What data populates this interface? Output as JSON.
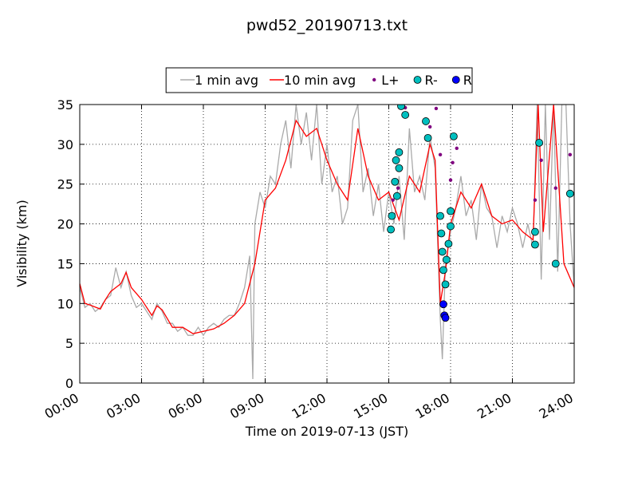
{
  "chart_data": {
    "type": "line",
    "title": "pwd52_20190713.txt",
    "x_label": "Time on 2019-07-13 (JST)",
    "y_label": "Visibility (km)",
    "xlim": [
      0,
      24
    ],
    "ylim": [
      0,
      35
    ],
    "xticks": [
      {
        "value": 0,
        "label": "00:00"
      },
      {
        "value": 3,
        "label": "03:00"
      },
      {
        "value": 6,
        "label": "06:00"
      },
      {
        "value": 9,
        "label": "09:00"
      },
      {
        "value": 12,
        "label": "12:00"
      },
      {
        "value": 15,
        "label": "15:00"
      },
      {
        "value": 18,
        "label": "18:00"
      },
      {
        "value": 21,
        "label": "21:00"
      },
      {
        "value": 24,
        "label": "24:00"
      }
    ],
    "yticks": [
      0,
      5,
      10,
      15,
      20,
      25,
      30,
      35
    ],
    "grid": true,
    "legend": "top",
    "series": [
      {
        "name": "1 min avg",
        "type": "line",
        "color": "#aaaaaa",
        "x": [
          0,
          0.25,
          0.5,
          0.75,
          1,
          1.25,
          1.5,
          1.75,
          2,
          2.25,
          2.5,
          2.75,
          3,
          3.25,
          3.5,
          3.75,
          4,
          4.25,
          4.5,
          4.75,
          5,
          5.25,
          5.5,
          5.75,
          6,
          6.25,
          6.5,
          6.75,
          7,
          7.25,
          7.5,
          7.75,
          8,
          8.25,
          8.4,
          8.5,
          8.75,
          9,
          9.25,
          9.5,
          9.75,
          10,
          10.25,
          10.5,
          10.75,
          11,
          11.25,
          11.5,
          11.75,
          12,
          12.25,
          12.5,
          12.75,
          13,
          13.25,
          13.5,
          13.75,
          14,
          14.25,
          14.5,
          14.75,
          15,
          15.25,
          15.5,
          15.75,
          16,
          16.25,
          16.5,
          16.75,
          17,
          17.25,
          17.5,
          17.6,
          17.75,
          18,
          18.25,
          18.5,
          18.75,
          19,
          19.25,
          19.5,
          19.75,
          20,
          20.25,
          20.5,
          20.75,
          21,
          21.25,
          21.5,
          21.75,
          22,
          22.2,
          22.4,
          22.6,
          22.8,
          23,
          23.2,
          23.4,
          23.6,
          23.8,
          24
        ],
        "values": [
          12,
          9.5,
          10,
          9,
          9.5,
          10.5,
          11,
          14.5,
          12,
          14,
          11,
          9.5,
          10,
          9,
          8,
          10,
          9,
          7.5,
          7.5,
          6.5,
          7,
          6,
          6,
          7,
          6,
          7,
          7.5,
          7,
          8,
          8.5,
          8.5,
          10,
          12,
          16,
          0.5,
          20,
          24,
          22,
          26,
          25,
          30,
          33,
          27,
          35,
          30,
          34,
          28,
          35,
          25,
          30,
          24,
          26,
          20,
          22,
          33,
          35,
          24,
          27,
          21,
          25,
          19,
          24,
          20,
          26,
          18,
          32,
          24,
          26,
          23,
          31,
          27,
          8,
          3,
          15,
          19,
          22,
          26,
          21,
          23,
          18,
          25,
          22,
          21,
          17,
          21,
          19,
          22,
          20,
          17,
          20,
          17,
          35,
          13,
          35,
          18,
          35,
          14,
          35,
          35,
          20,
          12
        ]
      },
      {
        "name": "10 min avg",
        "type": "line",
        "color": "#ff0000",
        "x": [
          0,
          0.25,
          0.5,
          1,
          1.25,
          1.5,
          2,
          2.25,
          2.5,
          3,
          3.5,
          3.75,
          4,
          4.5,
          5,
          5.5,
          6,
          6.5,
          7,
          7.5,
          8,
          8.5,
          9,
          9.5,
          10,
          10.5,
          11,
          11.5,
          12,
          12.5,
          13,
          13.5,
          14,
          14.5,
          15,
          15.5,
          16,
          16.5,
          17,
          17.25,
          17.5,
          17.75,
          18,
          18.5,
          19,
          19.5,
          20,
          20.5,
          21,
          21.5,
          22,
          22.25,
          22.5,
          23,
          23.5,
          24
        ],
        "values": [
          12.5,
          10,
          9.8,
          9.3,
          10.5,
          11.5,
          12.5,
          13.9,
          12,
          10.5,
          8.5,
          9.7,
          9.2,
          7,
          7,
          6.2,
          6.5,
          6.8,
          7.5,
          8.5,
          10,
          15,
          23,
          24.5,
          28,
          33,
          31,
          32,
          28,
          25,
          23,
          32,
          26,
          23,
          24,
          20.5,
          26,
          24,
          30,
          28,
          10,
          14,
          20,
          24,
          22,
          25,
          21,
          20,
          20.5,
          19,
          18,
          35,
          19,
          35,
          15,
          12
        ]
      },
      {
        "name": "L+",
        "type": "scatter",
        "color": "#800080",
        "x": [
          15.2,
          15.45,
          15.8,
          16.9,
          17,
          17.3,
          17.5,
          18,
          18.1,
          18.3,
          22.1,
          22.4,
          23.1,
          23.8
        ],
        "values": [
          23,
          24.5,
          34.6,
          31,
          32.2,
          34.5,
          28.7,
          25.5,
          27.7,
          29.5,
          23,
          28,
          24.5,
          28.7
        ]
      },
      {
        "name": "R-",
        "type": "scatter",
        "color": "#00bfbf",
        "x": [
          15.1,
          15.15,
          15.3,
          15.35,
          15.4,
          15.5,
          15.5,
          15.6,
          15.8,
          16.8,
          16.9,
          17.5,
          17.55,
          17.6,
          17.65,
          17.75,
          17.8,
          17.9,
          18,
          18,
          18.15,
          22.1,
          22.1,
          22.3,
          23.1,
          23.8
        ],
        "values": [
          19.3,
          21,
          25.3,
          28,
          23.5,
          27,
          29,
          34.8,
          33.7,
          32.9,
          30.8,
          21,
          18.8,
          16.5,
          14.2,
          12.4,
          15.5,
          17.5,
          19.7,
          21.6,
          31,
          19,
          17.4,
          30.2,
          15,
          23.8
        ]
      },
      {
        "name": "R",
        "type": "scatter",
        "color": "#0000ff",
        "x": [
          17.65,
          17.7,
          17.75
        ],
        "values": [
          9.9,
          8.5,
          8.2
        ]
      }
    ]
  }
}
